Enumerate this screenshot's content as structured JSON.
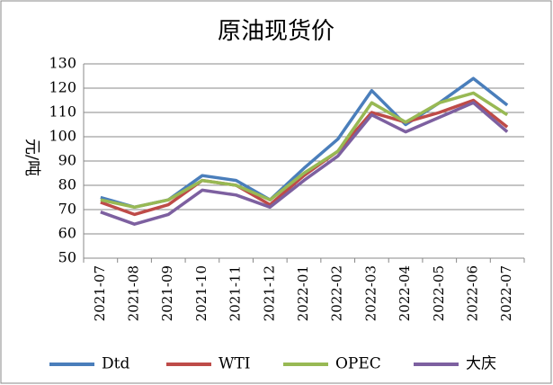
{
  "chart_data": {
    "type": "line",
    "title": "原油现货价",
    "ylabel": "元/吨",
    "categories": [
      "2021-07",
      "2021-08",
      "2021-09",
      "2021-10",
      "2021-11",
      "2021-12",
      "2022-01",
      "2022-02",
      "2022-03",
      "2022-04",
      "2022-05",
      "2022-06",
      "2022-07"
    ],
    "series": [
      {
        "name": "Dtd",
        "color": "#4a7ebb",
        "values": [
          75,
          71,
          74,
          84,
          82,
          74,
          87,
          99,
          119,
          105,
          114,
          124,
          113
        ]
      },
      {
        "name": "WTI",
        "color": "#be4b48",
        "values": [
          73,
          68,
          72,
          82,
          80,
          72,
          84,
          94,
          110,
          106,
          110,
          115,
          104
        ]
      },
      {
        "name": "OPEC",
        "color": "#98b954",
        "values": [
          74,
          71,
          74,
          82,
          80,
          74,
          85,
          94,
          114,
          106,
          114,
          118,
          109
        ]
      },
      {
        "name": "大庆",
        "color": "#7d60a0",
        "values": [
          69,
          64,
          68,
          78,
          76,
          71,
          82,
          92,
          109,
          102,
          108,
          114,
          102
        ]
      }
    ],
    "ylim": [
      50,
      130
    ],
    "yticks": [
      50,
      60,
      70,
      80,
      90,
      100,
      110,
      120,
      130
    ],
    "grid": true,
    "legend": "bottom"
  }
}
